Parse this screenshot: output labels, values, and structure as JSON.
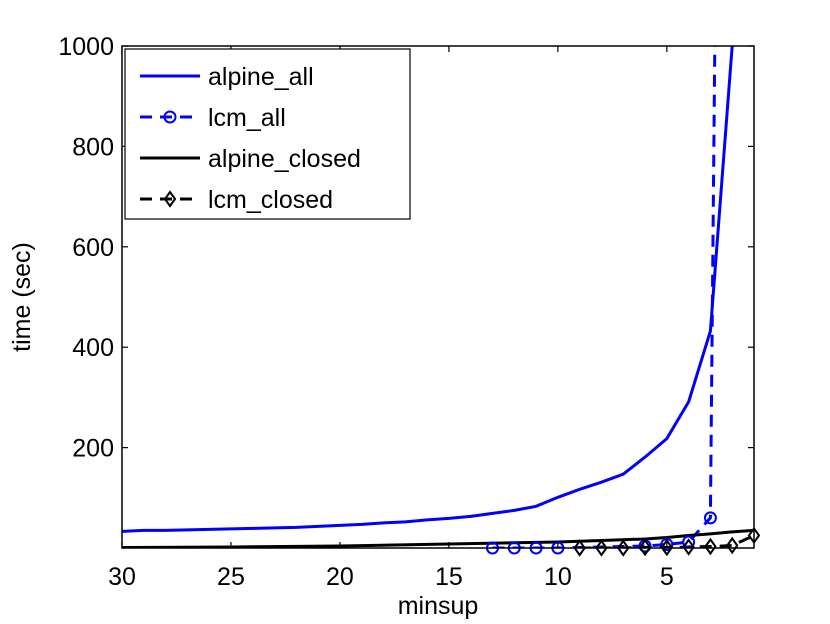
{
  "chart_data": {
    "type": "line",
    "title": "",
    "xlabel": "minsup",
    "ylabel": "time (sec)",
    "x_reversed": true,
    "xlim": [
      30,
      1
    ],
    "ylim": [
      0,
      1000
    ],
    "xticks": [
      30,
      25,
      20,
      15,
      10,
      5
    ],
    "yticks": [
      200,
      400,
      600,
      800,
      1000
    ],
    "grid": false,
    "legend_position": "top-left",
    "series": [
      {
        "name": "alpine_all",
        "color": "#0000ff",
        "line_style": "solid",
        "marker": "none",
        "x": [
          30,
          29,
          28,
          27,
          26,
          25,
          24,
          23,
          22,
          21,
          20,
          19,
          18,
          17,
          16,
          15,
          14,
          13,
          12,
          11,
          10,
          9,
          8,
          7,
          6,
          5,
          4,
          3,
          2
        ],
        "y": [
          33,
          35,
          35,
          36,
          37,
          38,
          39,
          40,
          41,
          43,
          45,
          47,
          50,
          52,
          56,
          59,
          63,
          69,
          75,
          83,
          101,
          117,
          131,
          147,
          181,
          218,
          291,
          432,
          1000
        ]
      },
      {
        "name": "lcm_all",
        "color": "#0000ff",
        "line_style": "dashed",
        "marker": "circle",
        "x": [
          13,
          12,
          11,
          10,
          6,
          5,
          4,
          3,
          2.8
        ],
        "y": [
          0,
          0,
          0,
          0,
          4,
          7,
          12,
          60,
          1000
        ]
      },
      {
        "name": "alpine_closed",
        "color": "#000000",
        "line_style": "solid",
        "marker": "none",
        "x": [
          30,
          25,
          20,
          15,
          10,
          8,
          6,
          5,
          4,
          3,
          2,
          1
        ],
        "y": [
          1,
          2,
          4,
          8,
          12,
          15,
          18,
          21,
          25,
          28,
          32,
          35
        ]
      },
      {
        "name": "lcm_closed",
        "color": "#000000",
        "line_style": "dashed",
        "marker": "diamond",
        "x": [
          9,
          8,
          7,
          6,
          5,
          4,
          3,
          2,
          1
        ],
        "y": [
          0,
          0,
          0,
          1,
          1,
          2,
          3,
          5,
          25
        ]
      }
    ]
  }
}
